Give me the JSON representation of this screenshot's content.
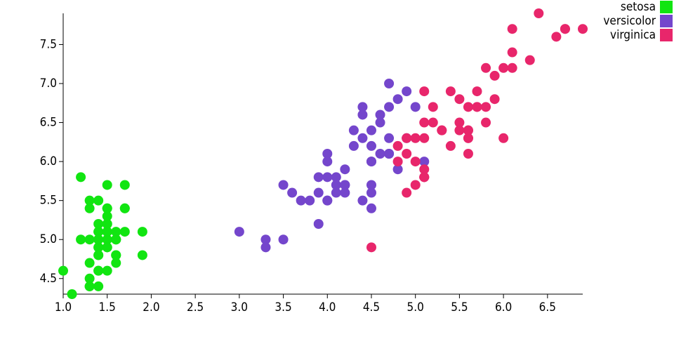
{
  "chart_data": {
    "type": "scatter",
    "xlim": [
      1.0,
      6.9
    ],
    "ylim": [
      4.3,
      7.9
    ],
    "xticks": [
      {
        "value": 1,
        "label": "1.0"
      },
      1.5,
      {
        "value": 2,
        "label": "2.0"
      },
      2.5,
      {
        "value": 3,
        "label": "3.0"
      },
      3.5,
      {
        "value": 4,
        "label": "4.0"
      },
      4.5,
      {
        "value": 5,
        "label": "5.0"
      },
      5.5,
      {
        "value": 6,
        "label": "6.0"
      },
      6.5
    ],
    "yticks": [
      4.5,
      {
        "value": 5,
        "label": "5.0"
      },
      5.5,
      {
        "value": 6,
        "label": "6.0"
      },
      6.5,
      {
        "value": 7,
        "label": "7.0"
      },
      7.5
    ],
    "grid": false,
    "legend": "top-right",
    "series": [
      {
        "name": "setosa",
        "color": "#11e511",
        "x": [
          1.4,
          1.4,
          1.3,
          1.5,
          1.4,
          1.7,
          1.4,
          1.5,
          1.4,
          1.5,
          1.5,
          1.6,
          1.4,
          1.1,
          1.2,
          1.5,
          1.3,
          1.4,
          1.7,
          1.5,
          1.7,
          1.5,
          1.0,
          1.7,
          1.9,
          1.6,
          1.6,
          1.5,
          1.4,
          1.6,
          1.6,
          1.5,
          1.5,
          1.4,
          1.5,
          1.2,
          1.3,
          1.4,
          1.3,
          1.5,
          1.3,
          1.3,
          1.3,
          1.6,
          1.9,
          1.4,
          1.6,
          1.4,
          1.5,
          1.4
        ],
        "values": [
          5.1,
          4.9,
          4.7,
          4.6,
          5.0,
          5.4,
          4.6,
          5.0,
          4.4,
          4.9,
          5.4,
          4.8,
          4.8,
          4.3,
          5.8,
          5.7,
          5.4,
          5.1,
          5.7,
          5.1,
          5.4,
          5.1,
          4.6,
          5.1,
          4.8,
          5.0,
          5.0,
          5.2,
          5.2,
          4.7,
          4.8,
          5.4,
          5.2,
          5.5,
          4.9,
          5.0,
          5.5,
          4.9,
          4.4,
          5.1,
          5.0,
          4.5,
          4.4,
          5.0,
          5.1,
          4.8,
          5.1,
          4.6,
          5.3,
          5.0
        ]
      },
      {
        "name": "versicolor",
        "color": "#7446cc",
        "x": [
          4.7,
          4.5,
          4.9,
          4.0,
          4.6,
          4.5,
          4.7,
          3.3,
          4.6,
          3.9,
          3.5,
          4.2,
          4.0,
          4.7,
          3.6,
          4.4,
          4.5,
          4.1,
          4.5,
          3.9,
          4.8,
          4.0,
          4.9,
          4.7,
          4.3,
          4.4,
          4.8,
          5.0,
          4.5,
          3.5,
          3.8,
          3.7,
          3.9,
          5.1,
          4.5,
          4.5,
          4.7,
          4.4,
          4.1,
          4.0,
          4.4,
          4.6,
          4.0,
          3.3,
          4.2,
          4.2,
          4.2,
          4.3,
          3.0,
          4.1
        ],
        "values": [
          7.0,
          6.4,
          6.9,
          5.5,
          6.5,
          5.7,
          6.3,
          4.9,
          6.6,
          5.2,
          5.0,
          5.9,
          6.0,
          6.1,
          5.6,
          6.7,
          5.6,
          5.8,
          6.2,
          5.6,
          5.9,
          6.1,
          6.3,
          6.1,
          6.4,
          6.6,
          6.8,
          6.7,
          6.0,
          5.7,
          5.5,
          5.5,
          5.8,
          6.0,
          5.4,
          6.0,
          6.7,
          6.3,
          5.6,
          5.5,
          5.5,
          6.1,
          5.8,
          5.0,
          5.6,
          5.7,
          5.7,
          6.2,
          5.1,
          5.7
        ]
      },
      {
        "name": "virginica",
        "color": "#e8266b",
        "x": [
          6.0,
          5.1,
          5.9,
          5.6,
          5.8,
          6.6,
          4.5,
          6.3,
          5.8,
          6.1,
          5.1,
          5.3,
          5.5,
          5.0,
          5.1,
          5.3,
          5.5,
          6.7,
          6.9,
          5.0,
          5.7,
          4.9,
          6.7,
          4.9,
          5.7,
          6.0,
          4.8,
          4.9,
          5.6,
          5.8,
          6.1,
          6.4,
          5.6,
          5.1,
          5.6,
          6.1,
          5.6,
          5.5,
          4.8,
          5.4,
          5.6,
          5.1,
          5.1,
          5.9,
          5.7,
          5.2,
          5.0,
          5.2,
          5.4,
          5.1
        ],
        "values": [
          6.3,
          5.8,
          7.1,
          6.3,
          6.5,
          7.6,
          4.9,
          7.3,
          6.7,
          7.2,
          6.5,
          6.4,
          6.8,
          5.7,
          5.8,
          6.4,
          6.5,
          7.7,
          7.7,
          6.0,
          6.9,
          5.6,
          7.7,
          6.3,
          6.7,
          7.2,
          6.2,
          6.1,
          6.4,
          7.2,
          7.4,
          7.9,
          6.4,
          6.3,
          6.1,
          7.7,
          6.3,
          6.4,
          6.0,
          6.9,
          6.7,
          6.9,
          5.8,
          6.8,
          6.7,
          6.7,
          6.3,
          6.5,
          6.2,
          5.9
        ]
      }
    ]
  }
}
